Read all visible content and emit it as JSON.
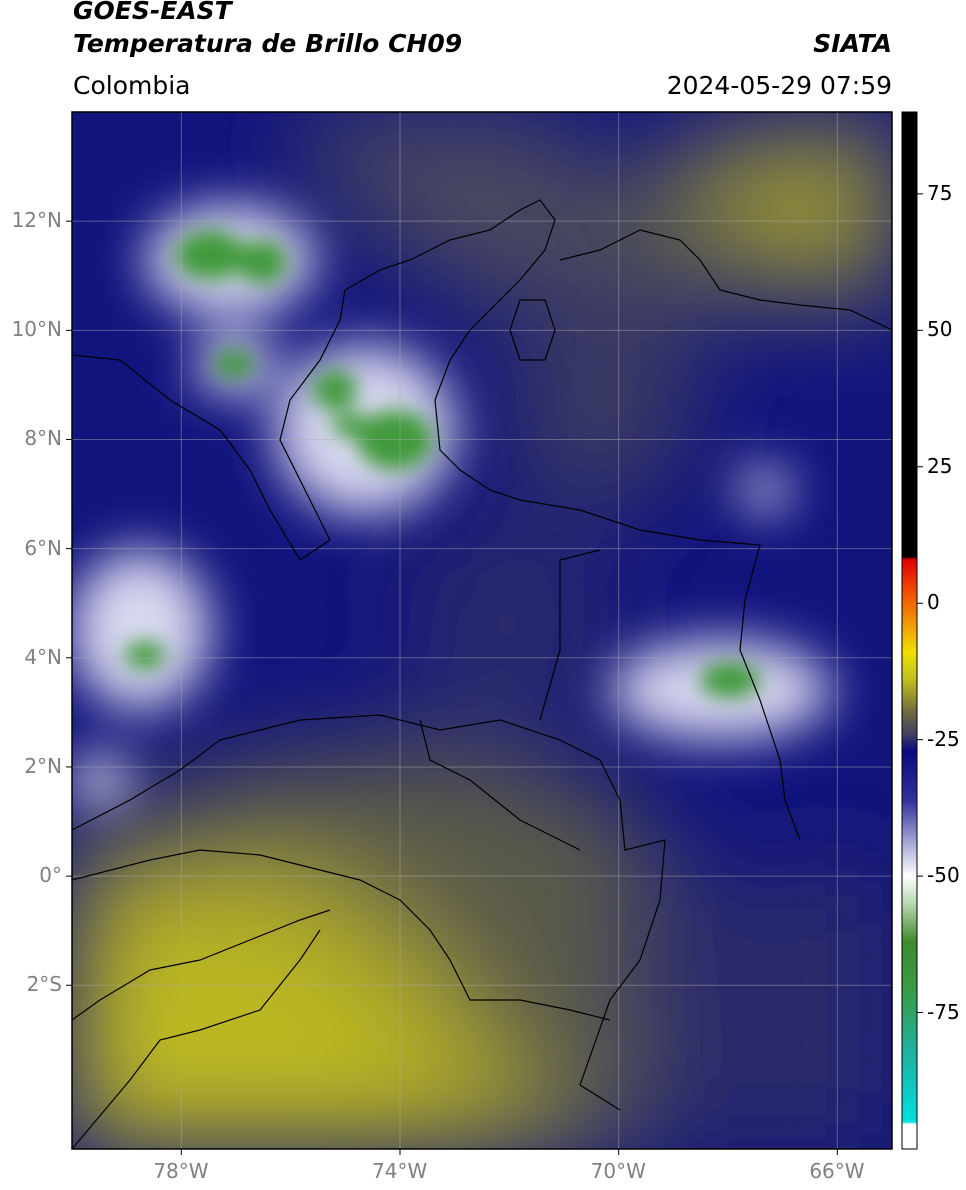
{
  "header": {
    "satellite": "GOES-EAST",
    "product": "Temperatura de Brillo CH09",
    "region": "Colombia",
    "organization": "SIATA",
    "timestamp": "2024-05-29 07:59"
  },
  "map": {
    "lon_range": [
      -80,
      -65
    ],
    "lat_range": [
      -5,
      14
    ],
    "lat_ticks": [
      {
        "value": 12,
        "label": "12°N"
      },
      {
        "value": 10,
        "label": "10°N"
      },
      {
        "value": 8,
        "label": "8°N"
      },
      {
        "value": 6,
        "label": "6°N"
      },
      {
        "value": 4,
        "label": "4°N"
      },
      {
        "value": 2,
        "label": "2°N"
      },
      {
        "value": 0,
        "label": "0°"
      },
      {
        "value": -2,
        "label": "2°S"
      }
    ],
    "lon_ticks": [
      {
        "value": -78,
        "label": "78°W"
      },
      {
        "value": -74,
        "label": "74°W"
      },
      {
        "value": -70,
        "label": "70°W"
      },
      {
        "value": -66,
        "label": "66°W"
      }
    ]
  },
  "colorbar": {
    "range": [
      -100,
      90
    ],
    "ticks": [
      {
        "value": 75,
        "label": "75"
      },
      {
        "value": 50,
        "label": "50"
      },
      {
        "value": 25,
        "label": "25"
      },
      {
        "value": 0,
        "label": "0"
      },
      {
        "value": -25,
        "label": "-25"
      },
      {
        "value": -50,
        "label": "-50"
      },
      {
        "value": -75,
        "label": "-75"
      }
    ],
    "stops": [
      {
        "value": -100,
        "color": "#ffffff"
      },
      {
        "value": -95.5,
        "color": "#ffffff"
      },
      {
        "value": -95,
        "color": "#00e0e0"
      },
      {
        "value": -82,
        "color": "#20b0a0"
      },
      {
        "value": -70,
        "color": "#3a9a40"
      },
      {
        "value": -62,
        "color": "#3f8a30"
      },
      {
        "value": -55,
        "color": "#b8d8b0"
      },
      {
        "value": -50,
        "color": "#ffffff"
      },
      {
        "value": -44,
        "color": "#a8aad8"
      },
      {
        "value": -36,
        "color": "#30309a"
      },
      {
        "value": -27,
        "color": "#0a0a80"
      },
      {
        "value": -24,
        "color": "#404060"
      },
      {
        "value": -20,
        "color": "#706840"
      },
      {
        "value": -14,
        "color": "#c0c020"
      },
      {
        "value": -9,
        "color": "#f0e000"
      },
      {
        "value": -3,
        "color": "#f09000"
      },
      {
        "value": 3,
        "color": "#f04000"
      },
      {
        "value": 8,
        "color": "#e00000"
      },
      {
        "value": 8.5,
        "color": "#000000"
      },
      {
        "value": 90,
        "color": "#000000"
      }
    ]
  },
  "colors": {
    "cold_green": "#3f9a3a",
    "deep_blue": "#12147e",
    "olive": "#5a5a48",
    "warm_yellow": "#b8b41a"
  }
}
